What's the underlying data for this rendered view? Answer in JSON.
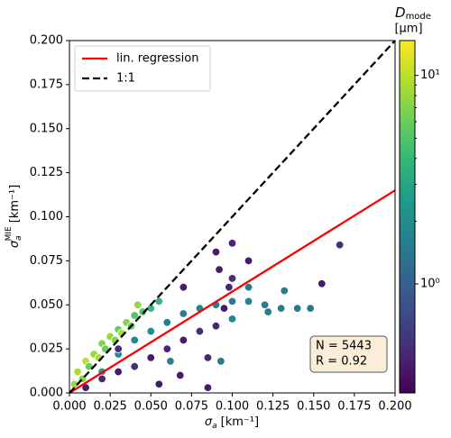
{
  "chart_data": {
    "type": "scatter",
    "x_label": {
      "symbol": "σ",
      "sub": "a",
      "unit": "[km⁻¹]"
    },
    "y_label": {
      "symbol": "σ",
      "sub": "a",
      "sup": "MIE",
      "unit": "[km⁻¹]"
    },
    "colorbar_label": {
      "symbol": "D",
      "sub": "mode",
      "unit": "[μm]"
    },
    "xlim": [
      0,
      0.2
    ],
    "ylim": [
      0,
      0.2
    ],
    "xticks": [
      {
        "value": 0,
        "label": "0.000"
      },
      {
        "value": 0.025,
        "label": "0.025"
      },
      {
        "value": 0.05,
        "label": "0.050"
      },
      {
        "value": 0.075,
        "label": "0.075"
      },
      {
        "value": 0.1,
        "label": "0.100"
      },
      {
        "value": 0.125,
        "label": "0.125"
      },
      {
        "value": 0.15,
        "label": "0.150"
      },
      {
        "value": 0.175,
        "label": "0.175"
      },
      {
        "value": 0.2,
        "label": "0.200"
      }
    ],
    "yticks": [
      {
        "value": 0,
        "label": "0.000"
      },
      {
        "value": 0.025,
        "label": "0.025"
      },
      {
        "value": 0.05,
        "label": "0.050"
      },
      {
        "value": 0.075,
        "label": "0.075"
      },
      {
        "value": 0.1,
        "label": "0.100"
      },
      {
        "value": 0.125,
        "label": "0.125"
      },
      {
        "value": 0.15,
        "label": "0.150"
      },
      {
        "value": 0.175,
        "label": "0.175"
      },
      {
        "value": 0.2,
        "label": "0.200"
      }
    ],
    "clim": [
      0.3,
      14.7
    ],
    "clog": true,
    "cticks": [
      {
        "value": 1,
        "label": "10⁰"
      },
      {
        "value": 10,
        "label": "10¹"
      }
    ],
    "colormap": [
      "#440154",
      "#482878",
      "#3e4989",
      "#31688e",
      "#26828e",
      "#1f9e89",
      "#35b779",
      "#6ece58",
      "#b5de2b",
      "#fde725"
    ],
    "points": {
      "x": [
        0.003,
        0.005,
        0.008,
        0.01,
        0.012,
        0.015,
        0.018,
        0.02,
        0.022,
        0.025,
        0.028,
        0.03,
        0.032,
        0.035,
        0.038,
        0.04,
        0.045,
        0.05,
        0.042,
        0.055,
        0.03,
        0.04,
        0.05,
        0.06,
        0.07,
        0.08,
        0.09,
        0.1,
        0.11,
        0.12,
        0.13,
        0.132,
        0.14,
        0.148,
        0.11,
        0.1,
        0.122,
        0.062,
        0.093,
        0.04,
        0.02,
        0.01,
        0.02,
        0.03,
        0.04,
        0.05,
        0.06,
        0.07,
        0.08,
        0.09,
        0.055,
        0.068,
        0.085,
        0.095,
        0.09,
        0.1,
        0.092,
        0.1,
        0.11,
        0.098,
        0.166,
        0.155,
        0.03,
        0.07,
        0.085
      ],
      "values": [
        0.005,
        0.012,
        0.008,
        0.018,
        0.015,
        0.022,
        0.02,
        0.028,
        0.025,
        0.032,
        0.03,
        0.036,
        0.034,
        0.04,
        0.038,
        0.044,
        0.046,
        0.048,
        0.05,
        0.052,
        0.022,
        0.03,
        0.035,
        0.04,
        0.045,
        0.048,
        0.05,
        0.052,
        0.052,
        0.05,
        0.048,
        0.058,
        0.048,
        0.048,
        0.06,
        0.042,
        0.046,
        0.018,
        0.018,
        0.015,
        0.012,
        0.003,
        0.008,
        0.012,
        0.015,
        0.02,
        0.025,
        0.03,
        0.035,
        0.038,
        0.005,
        0.01,
        0.02,
        0.048,
        0.08,
        0.085,
        0.07,
        0.065,
        0.075,
        0.06,
        0.084,
        0.062,
        0.025,
        0.06,
        0.003
      ],
      "c": [
        8,
        9,
        7,
        10,
        6,
        8,
        9,
        7,
        6,
        8,
        7,
        6,
        9,
        7,
        6,
        5,
        5,
        4,
        8,
        4,
        2,
        1.8,
        2,
        1.6,
        1.5,
        1.8,
        1.6,
        1.5,
        1.7,
        1.5,
        1.6,
        1.5,
        1.4,
        1.4,
        1.6,
        1.8,
        1.6,
        1.7,
        1.6,
        2.2,
        2.5,
        0.4,
        0.45,
        0.4,
        0.5,
        0.4,
        0.45,
        0.4,
        0.5,
        0.45,
        0.4,
        0.4,
        0.45,
        0.4,
        0.4,
        0.45,
        0.4,
        0.5,
        0.4,
        0.45,
        0.5,
        0.4,
        0.5,
        0.4,
        0.4
      ]
    },
    "lines": [
      {
        "name": "lin. regression",
        "color": "#ff0000",
        "dash": false,
        "x": [
          0,
          0.2
        ],
        "values": [
          0,
          0.115
        ]
      },
      {
        "name": "1:1",
        "color": "#000000",
        "dash": true,
        "x": [
          0,
          0.2
        ],
        "values": [
          0,
          0.2
        ]
      }
    ],
    "legend": "upper left",
    "annotation": [
      "N = 5443",
      "R = 0.92"
    ]
  }
}
